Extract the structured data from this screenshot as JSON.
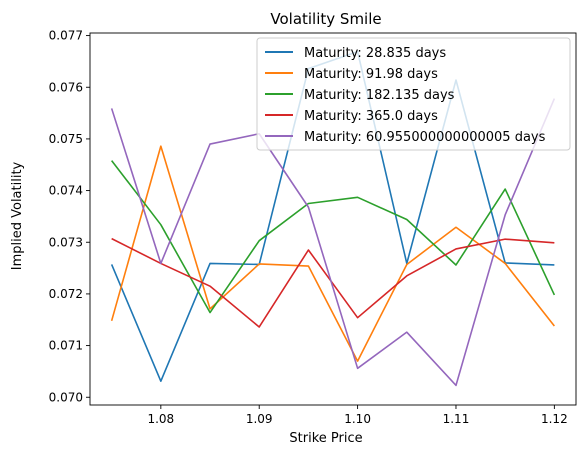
{
  "chart_data": {
    "type": "line",
    "title": "Volatility Smile",
    "xlabel": "Strike Price",
    "ylabel": "Implied Volatility",
    "x": [
      1.075,
      1.08,
      1.085,
      1.09,
      1.095,
      1.1,
      1.105,
      1.11,
      1.115,
      1.12
    ],
    "xlim": [
      1.0728,
      1.1222
    ],
    "ylim": [
      0.06985,
      0.07705
    ],
    "xticks": [
      1.08,
      1.09,
      1.1,
      1.11,
      1.12
    ],
    "xtick_labels": [
      "1.08",
      "1.09",
      "1.10",
      "1.11",
      "1.12"
    ],
    "yticks": [
      0.07,
      0.071,
      0.072,
      0.073,
      0.074,
      0.075,
      0.076,
      0.077
    ],
    "ytick_labels": [
      "0.070",
      "0.071",
      "0.072",
      "0.073",
      "0.074",
      "0.075",
      "0.076",
      "0.077"
    ],
    "grid": false,
    "legend_position": "top-right",
    "series": [
      {
        "name": "Maturity: 28.835 days",
        "color": "#1f77b4",
        "values": [
          0.07257,
          0.07031,
          0.07259,
          0.07257,
          0.07636,
          0.07669,
          0.07259,
          0.07614,
          0.0726,
          0.07256
        ]
      },
      {
        "name": "Maturity: 91.98 days",
        "color": "#ff7f0e",
        "values": [
          0.07148,
          0.07486,
          0.07171,
          0.07258,
          0.07254,
          0.0707,
          0.07257,
          0.07329,
          0.07259,
          0.07138
        ]
      },
      {
        "name": "Maturity: 182.135 days",
        "color": "#2ca02c",
        "values": [
          0.07458,
          0.07334,
          0.07164,
          0.07303,
          0.07375,
          0.07387,
          0.07344,
          0.07256,
          0.07403,
          0.07198
        ]
      },
      {
        "name": "Maturity: 365.0 days",
        "color": "#d62728",
        "values": [
          0.07307,
          0.07259,
          0.07215,
          0.07136,
          0.07285,
          0.07154,
          0.07235,
          0.07287,
          0.07306,
          0.07299
        ]
      },
      {
        "name": "Maturity: 60.955000000000005 days",
        "color": "#9467bd",
        "values": [
          0.07559,
          0.07259,
          0.0749,
          0.0751,
          0.07368,
          0.07056,
          0.07126,
          0.07023,
          0.07353,
          0.07578
        ]
      }
    ]
  }
}
